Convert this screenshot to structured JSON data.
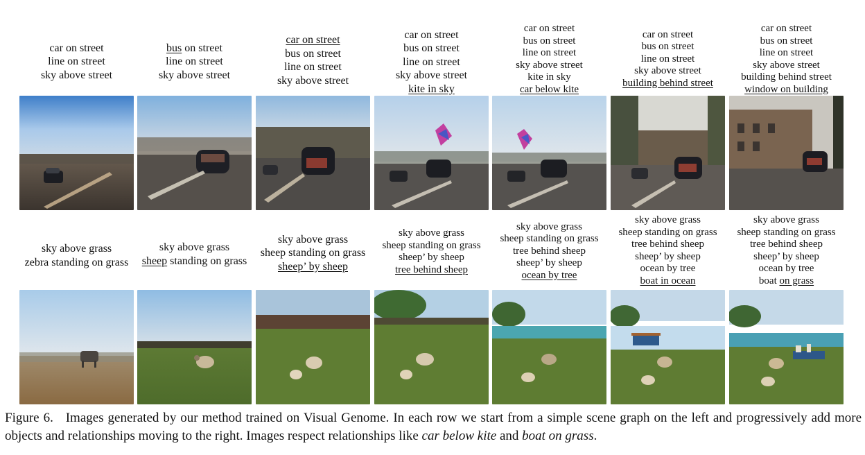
{
  "row1": [
    {
      "lines": [
        [
          "car on street"
        ],
        [
          "line on street"
        ],
        [
          "sky above street"
        ]
      ],
      "u": [
        [],
        [],
        []
      ]
    },
    {
      "lines": [
        [
          "bus",
          " on street"
        ],
        [
          "line on street"
        ],
        [
          "sky above street"
        ]
      ],
      "u": [
        [
          0
        ],
        [],
        []
      ]
    },
    {
      "lines": [
        [
          "car on street"
        ],
        [
          "bus on street"
        ],
        [
          "line on street"
        ],
        [
          "sky above street"
        ]
      ],
      "u": [
        [
          0
        ],
        [],
        [],
        []
      ]
    },
    {
      "lines": [
        [
          "car on street"
        ],
        [
          "bus on street"
        ],
        [
          "line on street"
        ],
        [
          "sky above street"
        ],
        [
          "kite in sky"
        ]
      ],
      "u": [
        [],
        [],
        [],
        [],
        [
          0
        ]
      ]
    },
    {
      "lines": [
        [
          "car on street"
        ],
        [
          "bus on street"
        ],
        [
          "line on street"
        ],
        [
          "sky above street"
        ],
        [
          "kite in sky"
        ],
        [
          "car below kite"
        ]
      ],
      "u": [
        [],
        [],
        [],
        [],
        [],
        [
          0
        ]
      ]
    },
    {
      "lines": [
        [
          "car on street"
        ],
        [
          "bus on street"
        ],
        [
          "line on street"
        ],
        [
          "sky above street"
        ],
        [
          "building behind street"
        ]
      ],
      "u": [
        [],
        [],
        [],
        [],
        [
          0
        ]
      ]
    },
    {
      "lines": [
        [
          "car on street"
        ],
        [
          "bus on street"
        ],
        [
          "line on street"
        ],
        [
          "sky above street"
        ],
        [
          "building behind street"
        ],
        [
          "window on building"
        ]
      ],
      "u": [
        [],
        [],
        [],
        [],
        [],
        [
          0
        ]
      ]
    }
  ],
  "row2": [
    {
      "lines": [
        [
          "sky above grass"
        ],
        [
          "zebra standing on grass"
        ]
      ],
      "u": [
        [],
        []
      ]
    },
    {
      "lines": [
        [
          "sky above grass"
        ],
        [
          "sheep",
          " standing on grass"
        ]
      ],
      "u": [
        [],
        [
          0
        ]
      ]
    },
    {
      "lines": [
        [
          "sky above grass"
        ],
        [
          "sheep standing on grass"
        ],
        [
          "sheep’ by sheep"
        ]
      ],
      "u": [
        [],
        [],
        [
          0
        ]
      ]
    },
    {
      "lines": [
        [
          "sky above grass"
        ],
        [
          "sheep standing on grass"
        ],
        [
          "sheep’ by sheep"
        ],
        [
          "tree behind sheep"
        ]
      ],
      "u": [
        [],
        [],
        [],
        [
          0
        ]
      ]
    },
    {
      "lines": [
        [
          "sky above grass"
        ],
        [
          "sheep standing on grass"
        ],
        [
          "tree behind sheep"
        ],
        [
          "sheep’ by sheep"
        ],
        [
          "ocean by tree"
        ]
      ],
      "u": [
        [],
        [],
        [],
        [],
        [
          0
        ]
      ]
    },
    {
      "lines": [
        [
          "sky above grass"
        ],
        [
          "sheep standing on grass"
        ],
        [
          "tree behind sheep"
        ],
        [
          "sheep’ by sheep"
        ],
        [
          "ocean by tree"
        ],
        [
          "boat in ocean"
        ]
      ],
      "u": [
        [],
        [],
        [],
        [],
        [],
        [
          0
        ]
      ]
    },
    {
      "lines": [
        [
          "sky above grass"
        ],
        [
          "sheep standing on grass"
        ],
        [
          "tree behind sheep"
        ],
        [
          "sheep’ by sheep"
        ],
        [
          "ocean by tree"
        ],
        [
          "boat ",
          "on grass"
        ]
      ],
      "u": [
        [],
        [],
        [],
        [],
        [],
        [
          1
        ]
      ]
    }
  ],
  "caption": {
    "label": "Figure 6.",
    "text1": "Images generated by our method trained on Visual Genome. In each row we start from a simple scene graph on the left and progressively add more objects and relationships moving to the right. Images respect relationships like ",
    "em1": "car below kite",
    "text2": " and ",
    "em2": "boat on grass",
    "text3": "."
  }
}
